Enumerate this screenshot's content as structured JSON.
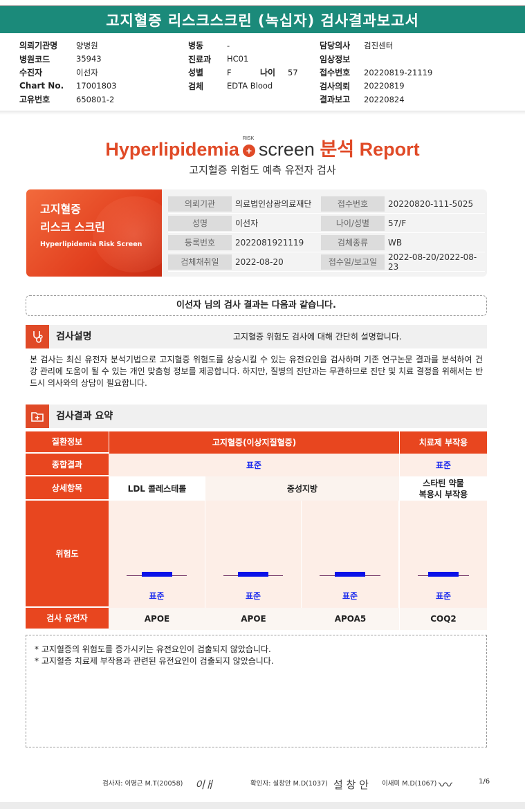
{
  "report_title": "고지혈증 리스크스크린 (녹십자) 검사결과보고서",
  "header": {
    "col1": [
      {
        "k": "의뢰기관명",
        "v": "양병원"
      },
      {
        "k": "병원코드",
        "v": "35943"
      },
      {
        "k": "수진자",
        "v": "이선자"
      },
      {
        "k": "Chart No.",
        "v": "17001803"
      },
      {
        "k": "고유번호",
        "v": "650801-2"
      }
    ],
    "ward": {
      "k": "병동",
      "v": "-"
    },
    "dept": {
      "k": "진료과",
      "v": "HC01"
    },
    "sex": {
      "k": "성별",
      "v": "F"
    },
    "age": {
      "k": "나이",
      "v": "57"
    },
    "specimen": {
      "k": "검체",
      "v": "EDTA Blood"
    },
    "col3": [
      {
        "k": "담당의사",
        "v": "검진센터"
      },
      {
        "k": "임상정보",
        "v": ""
      },
      {
        "k": "접수번호",
        "v": "20220819-21119"
      },
      {
        "k": "검사의뢰",
        "v": "20220819"
      },
      {
        "k": "결과보고",
        "v": "20220824"
      }
    ]
  },
  "brand": {
    "word1": "Hyperlipidemia",
    "risk_label": "RISK",
    "plus": "+",
    "word2": "screen",
    "word3": "분석 Report",
    "subtitle": "고지혈증 위험도 예측 유전자 검사"
  },
  "card": {
    "title_line1": "고지혈증",
    "title_line2": "리스크 스크린",
    "title_en": "Hyperlipidemia Risk Screen",
    "rows": [
      {
        "l1": "의뢰기관",
        "v1": "의료법인삼광의료재단",
        "l2": "접수번호",
        "v2": "20220820-111-5025"
      },
      {
        "l1": "성명",
        "v1": "이선자",
        "l2": "나이/성별",
        "v2": "57/F"
      },
      {
        "l1": "등록번호",
        "v1": "2022081921119",
        "l2": "검체종류",
        "v2": "WB"
      },
      {
        "l1": "검체채취일",
        "v1": "2022-08-20",
        "l2": "접수일/보고일",
        "v2": "2022-08-20/2022-08-23"
      }
    ]
  },
  "greeting": "이선자 님의 검사 결과는 다음과 같습니다.",
  "section1": {
    "title": "검사설명",
    "desc": "고지혈증 위험도 검사에 대해 간단히 설명합니다.",
    "body": "본 검사는 최신 유전자 분석기법으로 고지혈증 위험도를 상승시킬 수 있는 유전요인을 검사하며 기존 연구논문 결과를 분석하여 건강 관리에 도움이 될 수 있는 개인 맞춤형 정보를 제공합니다. 하지만, 질병의 진단과는 무관하므로 진단 및 치료 결정을 위해서는 반드시 의사와의 상담이 필요합니다."
  },
  "section2": {
    "title": "검사결과 요약"
  },
  "table": {
    "row_labels": {
      "disease": "질환정보",
      "overall": "종합결과",
      "detail": "상세항목",
      "risk": "위험도",
      "gene": "검사 유전자"
    },
    "disease_main": "고지혈증(이상지질혈증)",
    "disease_side": "치료제 부작용",
    "overall_main": "표준",
    "overall_side": "표준",
    "details": [
      "LDL 콜레스테롤",
      "중성지방",
      "스타틴 약물\n복용시 부작용"
    ],
    "columns": [
      {
        "gene": "APOE",
        "level": "표준",
        "level_fraction": 0.5
      },
      {
        "gene": "APOE",
        "level": "표준",
        "level_fraction": 0.5
      },
      {
        "gene": "APOA5",
        "level": "표준",
        "level_fraction": 0.5
      },
      {
        "gene": "COQ2",
        "level": "표준",
        "level_fraction": 0.5
      }
    ]
  },
  "notes": [
    "* 고지혈증의 위험도를 증가시키는 유전요인이 검출되지 않았습니다.",
    "* 고지혈증 치료제 부작용과 관련된 유전요인이 검출되지 않았습니다."
  ],
  "footer": {
    "tester": "검사자: 이명근 M.T(20058)",
    "tester_sig": "이ㅐ",
    "confirmer": "확인자: 설창안 M.D(1037)",
    "confirmer_sig": "설 창 안",
    "third": "이새미 M.D(1067)",
    "third_sig": "〰",
    "page": "1/6"
  },
  "colors": {
    "banner": "#1b8a7a",
    "accent": "#e8461f",
    "level_blue": "#1a2aee"
  },
  "icons": {
    "section1": "stethoscope-icon",
    "section2": "medical-folder-icon"
  }
}
